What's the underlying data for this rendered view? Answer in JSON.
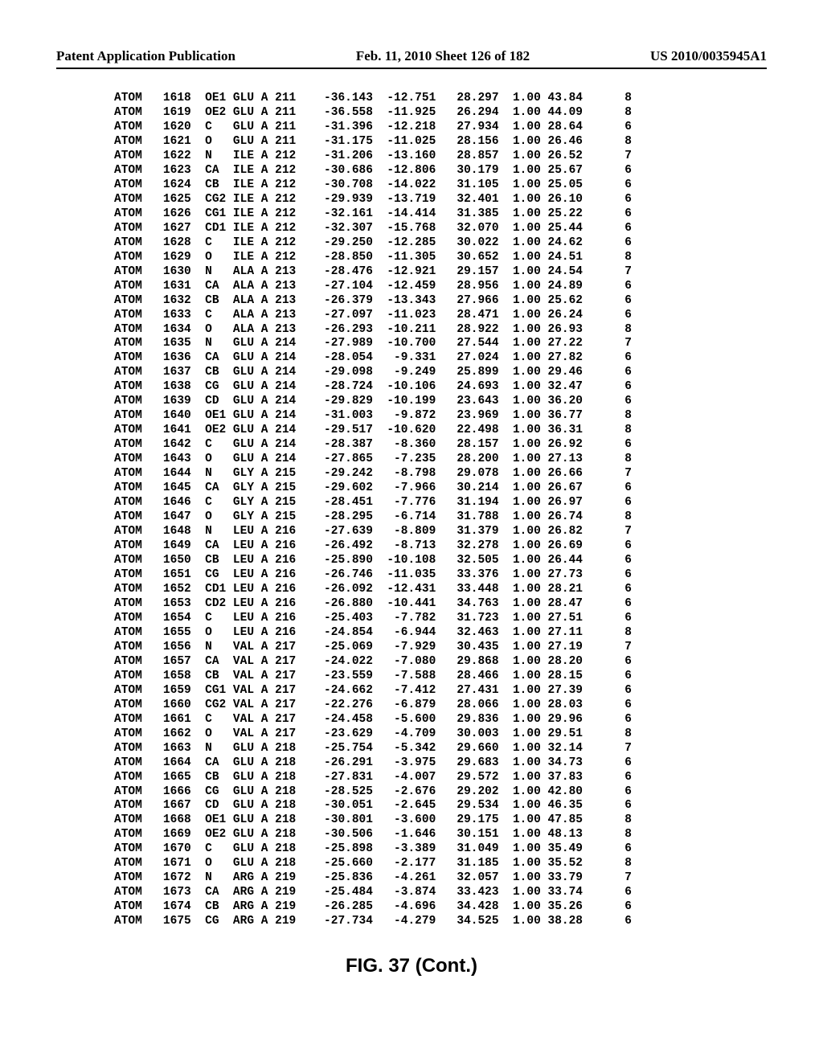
{
  "header": {
    "left": "Patent Application Publication",
    "center": "Feb. 11, 2010  Sheet 126 of 182",
    "right": "US 2010/0035945A1"
  },
  "caption": "FIG. 37 (Cont.)",
  "rows": [
    {
      "rec": "ATOM",
      "serial": "1618",
      "atom": "OE1",
      "res": "GLU",
      "chain": "A",
      "seq": "211",
      "x": "-36.143",
      "y": "-12.751",
      "z": "28.297",
      "occ": "1.00",
      "b": "43.84",
      "elem": "8"
    },
    {
      "rec": "ATOM",
      "serial": "1619",
      "atom": "OE2",
      "res": "GLU",
      "chain": "A",
      "seq": "211",
      "x": "-36.558",
      "y": "-11.925",
      "z": "26.294",
      "occ": "1.00",
      "b": "44.09",
      "elem": "8"
    },
    {
      "rec": "ATOM",
      "serial": "1620",
      "atom": "C",
      "res": "GLU",
      "chain": "A",
      "seq": "211",
      "x": "-31.396",
      "y": "-12.218",
      "z": "27.934",
      "occ": "1.00",
      "b": "28.64",
      "elem": "6"
    },
    {
      "rec": "ATOM",
      "serial": "1621",
      "atom": "O",
      "res": "GLU",
      "chain": "A",
      "seq": "211",
      "x": "-31.175",
      "y": "-11.025",
      "z": "28.156",
      "occ": "1.00",
      "b": "26.46",
      "elem": "8"
    },
    {
      "rec": "ATOM",
      "serial": "1622",
      "atom": "N",
      "res": "ILE",
      "chain": "A",
      "seq": "212",
      "x": "-31.206",
      "y": "-13.160",
      "z": "28.857",
      "occ": "1.00",
      "b": "26.52",
      "elem": "7"
    },
    {
      "rec": "ATOM",
      "serial": "1623",
      "atom": "CA",
      "res": "ILE",
      "chain": "A",
      "seq": "212",
      "x": "-30.686",
      "y": "-12.806",
      "z": "30.179",
      "occ": "1.00",
      "b": "25.67",
      "elem": "6"
    },
    {
      "rec": "ATOM",
      "serial": "1624",
      "atom": "CB",
      "res": "ILE",
      "chain": "A",
      "seq": "212",
      "x": "-30.708",
      "y": "-14.022",
      "z": "31.105",
      "occ": "1.00",
      "b": "25.05",
      "elem": "6"
    },
    {
      "rec": "ATOM",
      "serial": "1625",
      "atom": "CG2",
      "res": "ILE",
      "chain": "A",
      "seq": "212",
      "x": "-29.939",
      "y": "-13.719",
      "z": "32.401",
      "occ": "1.00",
      "b": "26.10",
      "elem": "6"
    },
    {
      "rec": "ATOM",
      "serial": "1626",
      "atom": "CG1",
      "res": "ILE",
      "chain": "A",
      "seq": "212",
      "x": "-32.161",
      "y": "-14.414",
      "z": "31.385",
      "occ": "1.00",
      "b": "25.22",
      "elem": "6"
    },
    {
      "rec": "ATOM",
      "serial": "1627",
      "atom": "CD1",
      "res": "ILE",
      "chain": "A",
      "seq": "212",
      "x": "-32.307",
      "y": "-15.768",
      "z": "32.070",
      "occ": "1.00",
      "b": "25.44",
      "elem": "6"
    },
    {
      "rec": "ATOM",
      "serial": "1628",
      "atom": "C",
      "res": "ILE",
      "chain": "A",
      "seq": "212",
      "x": "-29.250",
      "y": "-12.285",
      "z": "30.022",
      "occ": "1.00",
      "b": "24.62",
      "elem": "6"
    },
    {
      "rec": "ATOM",
      "serial": "1629",
      "atom": "O",
      "res": "ILE",
      "chain": "A",
      "seq": "212",
      "x": "-28.850",
      "y": "-11.305",
      "z": "30.652",
      "occ": "1.00",
      "b": "24.51",
      "elem": "8"
    },
    {
      "rec": "ATOM",
      "serial": "1630",
      "atom": "N",
      "res": "ALA",
      "chain": "A",
      "seq": "213",
      "x": "-28.476",
      "y": "-12.921",
      "z": "29.157",
      "occ": "1.00",
      "b": "24.54",
      "elem": "7"
    },
    {
      "rec": "ATOM",
      "serial": "1631",
      "atom": "CA",
      "res": "ALA",
      "chain": "A",
      "seq": "213",
      "x": "-27.104",
      "y": "-12.459",
      "z": "28.956",
      "occ": "1.00",
      "b": "24.89",
      "elem": "6"
    },
    {
      "rec": "ATOM",
      "serial": "1632",
      "atom": "CB",
      "res": "ALA",
      "chain": "A",
      "seq": "213",
      "x": "-26.379",
      "y": "-13.343",
      "z": "27.966",
      "occ": "1.00",
      "b": "25.62",
      "elem": "6"
    },
    {
      "rec": "ATOM",
      "serial": "1633",
      "atom": "C",
      "res": "ALA",
      "chain": "A",
      "seq": "213",
      "x": "-27.097",
      "y": "-11.023",
      "z": "28.471",
      "occ": "1.00",
      "b": "26.24",
      "elem": "6"
    },
    {
      "rec": "ATOM",
      "serial": "1634",
      "atom": "O",
      "res": "ALA",
      "chain": "A",
      "seq": "213",
      "x": "-26.293",
      "y": "-10.211",
      "z": "28.922",
      "occ": "1.00",
      "b": "26.93",
      "elem": "8"
    },
    {
      "rec": "ATOM",
      "serial": "1635",
      "atom": "N",
      "res": "GLU",
      "chain": "A",
      "seq": "214",
      "x": "-27.989",
      "y": "-10.700",
      "z": "27.544",
      "occ": "1.00",
      "b": "27.22",
      "elem": "7"
    },
    {
      "rec": "ATOM",
      "serial": "1636",
      "atom": "CA",
      "res": "GLU",
      "chain": "A",
      "seq": "214",
      "x": "-28.054",
      "y": "-9.331",
      "z": "27.024",
      "occ": "1.00",
      "b": "27.82",
      "elem": "6"
    },
    {
      "rec": "ATOM",
      "serial": "1637",
      "atom": "CB",
      "res": "GLU",
      "chain": "A",
      "seq": "214",
      "x": "-29.098",
      "y": "-9.249",
      "z": "25.899",
      "occ": "1.00",
      "b": "29.46",
      "elem": "6"
    },
    {
      "rec": "ATOM",
      "serial": "1638",
      "atom": "CG",
      "res": "GLU",
      "chain": "A",
      "seq": "214",
      "x": "-28.724",
      "y": "-10.106",
      "z": "24.693",
      "occ": "1.00",
      "b": "32.47",
      "elem": "6"
    },
    {
      "rec": "ATOM",
      "serial": "1639",
      "atom": "CD",
      "res": "GLU",
      "chain": "A",
      "seq": "214",
      "x": "-29.829",
      "y": "-10.199",
      "z": "23.643",
      "occ": "1.00",
      "b": "36.20",
      "elem": "6"
    },
    {
      "rec": "ATOM",
      "serial": "1640",
      "atom": "OE1",
      "res": "GLU",
      "chain": "A",
      "seq": "214",
      "x": "-31.003",
      "y": "-9.872",
      "z": "23.969",
      "occ": "1.00",
      "b": "36.77",
      "elem": "8"
    },
    {
      "rec": "ATOM",
      "serial": "1641",
      "atom": "OE2",
      "res": "GLU",
      "chain": "A",
      "seq": "214",
      "x": "-29.517",
      "y": "-10.620",
      "z": "22.498",
      "occ": "1.00",
      "b": "36.31",
      "elem": "8"
    },
    {
      "rec": "ATOM",
      "serial": "1642",
      "atom": "C",
      "res": "GLU",
      "chain": "A",
      "seq": "214",
      "x": "-28.387",
      "y": "-8.360",
      "z": "28.157",
      "occ": "1.00",
      "b": "26.92",
      "elem": "6"
    },
    {
      "rec": "ATOM",
      "serial": "1643",
      "atom": "O",
      "res": "GLU",
      "chain": "A",
      "seq": "214",
      "x": "-27.865",
      "y": "-7.235",
      "z": "28.200",
      "occ": "1.00",
      "b": "27.13",
      "elem": "8"
    },
    {
      "rec": "ATOM",
      "serial": "1644",
      "atom": "N",
      "res": "GLY",
      "chain": "A",
      "seq": "215",
      "x": "-29.242",
      "y": "-8.798",
      "z": "29.078",
      "occ": "1.00",
      "b": "26.66",
      "elem": "7"
    },
    {
      "rec": "ATOM",
      "serial": "1645",
      "atom": "CA",
      "res": "GLY",
      "chain": "A",
      "seq": "215",
      "x": "-29.602",
      "y": "-7.966",
      "z": "30.214",
      "occ": "1.00",
      "b": "26.67",
      "elem": "6"
    },
    {
      "rec": "ATOM",
      "serial": "1646",
      "atom": "C",
      "res": "GLY",
      "chain": "A",
      "seq": "215",
      "x": "-28.451",
      "y": "-7.776",
      "z": "31.194",
      "occ": "1.00",
      "b": "26.97",
      "elem": "6"
    },
    {
      "rec": "ATOM",
      "serial": "1647",
      "atom": "O",
      "res": "GLY",
      "chain": "A",
      "seq": "215",
      "x": "-28.295",
      "y": "-6.714",
      "z": "31.788",
      "occ": "1.00",
      "b": "26.74",
      "elem": "8"
    },
    {
      "rec": "ATOM",
      "serial": "1648",
      "atom": "N",
      "res": "LEU",
      "chain": "A",
      "seq": "216",
      "x": "-27.639",
      "y": "-8.809",
      "z": "31.379",
      "occ": "1.00",
      "b": "26.82",
      "elem": "7"
    },
    {
      "rec": "ATOM",
      "serial": "1649",
      "atom": "CA",
      "res": "LEU",
      "chain": "A",
      "seq": "216",
      "x": "-26.492",
      "y": "-8.713",
      "z": "32.278",
      "occ": "1.00",
      "b": "26.69",
      "elem": "6"
    },
    {
      "rec": "ATOM",
      "serial": "1650",
      "atom": "CB",
      "res": "LEU",
      "chain": "A",
      "seq": "216",
      "x": "-25.890",
      "y": "-10.108",
      "z": "32.505",
      "occ": "1.00",
      "b": "26.44",
      "elem": "6"
    },
    {
      "rec": "ATOM",
      "serial": "1651",
      "atom": "CG",
      "res": "LEU",
      "chain": "A",
      "seq": "216",
      "x": "-26.746",
      "y": "-11.035",
      "z": "33.376",
      "occ": "1.00",
      "b": "27.73",
      "elem": "6"
    },
    {
      "rec": "ATOM",
      "serial": "1652",
      "atom": "CD1",
      "res": "LEU",
      "chain": "A",
      "seq": "216",
      "x": "-26.092",
      "y": "-12.431",
      "z": "33.448",
      "occ": "1.00",
      "b": "28.21",
      "elem": "6"
    },
    {
      "rec": "ATOM",
      "serial": "1653",
      "atom": "CD2",
      "res": "LEU",
      "chain": "A",
      "seq": "216",
      "x": "-26.880",
      "y": "-10.441",
      "z": "34.763",
      "occ": "1.00",
      "b": "28.47",
      "elem": "6"
    },
    {
      "rec": "ATOM",
      "serial": "1654",
      "atom": "C",
      "res": "LEU",
      "chain": "A",
      "seq": "216",
      "x": "-25.403",
      "y": "-7.782",
      "z": "31.723",
      "occ": "1.00",
      "b": "27.51",
      "elem": "6"
    },
    {
      "rec": "ATOM",
      "serial": "1655",
      "atom": "O",
      "res": "LEU",
      "chain": "A",
      "seq": "216",
      "x": "-24.854",
      "y": "-6.944",
      "z": "32.463",
      "occ": "1.00",
      "b": "27.11",
      "elem": "8"
    },
    {
      "rec": "ATOM",
      "serial": "1656",
      "atom": "N",
      "res": "VAL",
      "chain": "A",
      "seq": "217",
      "x": "-25.069",
      "y": "-7.929",
      "z": "30.435",
      "occ": "1.00",
      "b": "27.19",
      "elem": "7"
    },
    {
      "rec": "ATOM",
      "serial": "1657",
      "atom": "CA",
      "res": "VAL",
      "chain": "A",
      "seq": "217",
      "x": "-24.022",
      "y": "-7.080",
      "z": "29.868",
      "occ": "1.00",
      "b": "28.20",
      "elem": "6"
    },
    {
      "rec": "ATOM",
      "serial": "1658",
      "atom": "CB",
      "res": "VAL",
      "chain": "A",
      "seq": "217",
      "x": "-23.559",
      "y": "-7.588",
      "z": "28.466",
      "occ": "1.00",
      "b": "28.15",
      "elem": "6"
    },
    {
      "rec": "ATOM",
      "serial": "1659",
      "atom": "CG1",
      "res": "VAL",
      "chain": "A",
      "seq": "217",
      "x": "-24.662",
      "y": "-7.412",
      "z": "27.431",
      "occ": "1.00",
      "b": "27.39",
      "elem": "6"
    },
    {
      "rec": "ATOM",
      "serial": "1660",
      "atom": "CG2",
      "res": "VAL",
      "chain": "A",
      "seq": "217",
      "x": "-22.276",
      "y": "-6.879",
      "z": "28.066",
      "occ": "1.00",
      "b": "28.03",
      "elem": "6"
    },
    {
      "rec": "ATOM",
      "serial": "1661",
      "atom": "C",
      "res": "VAL",
      "chain": "A",
      "seq": "217",
      "x": "-24.458",
      "y": "-5.600",
      "z": "29.836",
      "occ": "1.00",
      "b": "29.96",
      "elem": "6"
    },
    {
      "rec": "ATOM",
      "serial": "1662",
      "atom": "O",
      "res": "VAL",
      "chain": "A",
      "seq": "217",
      "x": "-23.629",
      "y": "-4.709",
      "z": "30.003",
      "occ": "1.00",
      "b": "29.51",
      "elem": "8"
    },
    {
      "rec": "ATOM",
      "serial": "1663",
      "atom": "N",
      "res": "GLU",
      "chain": "A",
      "seq": "218",
      "x": "-25.754",
      "y": "-5.342",
      "z": "29.660",
      "occ": "1.00",
      "b": "32.14",
      "elem": "7"
    },
    {
      "rec": "ATOM",
      "serial": "1664",
      "atom": "CA",
      "res": "GLU",
      "chain": "A",
      "seq": "218",
      "x": "-26.291",
      "y": "-3.975",
      "z": "29.683",
      "occ": "1.00",
      "b": "34.73",
      "elem": "6"
    },
    {
      "rec": "ATOM",
      "serial": "1665",
      "atom": "CB",
      "res": "GLU",
      "chain": "A",
      "seq": "218",
      "x": "-27.831",
      "y": "-4.007",
      "z": "29.572",
      "occ": "1.00",
      "b": "37.83",
      "elem": "6"
    },
    {
      "rec": "ATOM",
      "serial": "1666",
      "atom": "CG",
      "res": "GLU",
      "chain": "A",
      "seq": "218",
      "x": "-28.525",
      "y": "-2.676",
      "z": "29.202",
      "occ": "1.00",
      "b": "42.80",
      "elem": "6"
    },
    {
      "rec": "ATOM",
      "serial": "1667",
      "atom": "CD",
      "res": "GLU",
      "chain": "A",
      "seq": "218",
      "x": "-30.051",
      "y": "-2.645",
      "z": "29.534",
      "occ": "1.00",
      "b": "46.35",
      "elem": "6"
    },
    {
      "rec": "ATOM",
      "serial": "1668",
      "atom": "OE1",
      "res": "GLU",
      "chain": "A",
      "seq": "218",
      "x": "-30.801",
      "y": "-3.600",
      "z": "29.175",
      "occ": "1.00",
      "b": "47.85",
      "elem": "8"
    },
    {
      "rec": "ATOM",
      "serial": "1669",
      "atom": "OE2",
      "res": "GLU",
      "chain": "A",
      "seq": "218",
      "x": "-30.506",
      "y": "-1.646",
      "z": "30.151",
      "occ": "1.00",
      "b": "48.13",
      "elem": "8"
    },
    {
      "rec": "ATOM",
      "serial": "1670",
      "atom": "C",
      "res": "GLU",
      "chain": "A",
      "seq": "218",
      "x": "-25.898",
      "y": "-3.389",
      "z": "31.049",
      "occ": "1.00",
      "b": "35.49",
      "elem": "6"
    },
    {
      "rec": "ATOM",
      "serial": "1671",
      "atom": "O",
      "res": "GLU",
      "chain": "A",
      "seq": "218",
      "x": "-25.660",
      "y": "-2.177",
      "z": "31.185",
      "occ": "1.00",
      "b": "35.52",
      "elem": "8"
    },
    {
      "rec": "ATOM",
      "serial": "1672",
      "atom": "N",
      "res": "ARG",
      "chain": "A",
      "seq": "219",
      "x": "-25.836",
      "y": "-4.261",
      "z": "32.057",
      "occ": "1.00",
      "b": "33.79",
      "elem": "7"
    },
    {
      "rec": "ATOM",
      "serial": "1673",
      "atom": "CA",
      "res": "ARG",
      "chain": "A",
      "seq": "219",
      "x": "-25.484",
      "y": "-3.874",
      "z": "33.423",
      "occ": "1.00",
      "b": "33.74",
      "elem": "6"
    },
    {
      "rec": "ATOM",
      "serial": "1674",
      "atom": "CB",
      "res": "ARG",
      "chain": "A",
      "seq": "219",
      "x": "-26.285",
      "y": "-4.696",
      "z": "34.428",
      "occ": "1.00",
      "b": "35.26",
      "elem": "6"
    },
    {
      "rec": "ATOM",
      "serial": "1675",
      "atom": "CG",
      "res": "ARG",
      "chain": "A",
      "seq": "219",
      "x": "-27.734",
      "y": "-4.279",
      "z": "34.525",
      "occ": "1.00",
      "b": "38.28",
      "elem": "6"
    }
  ]
}
